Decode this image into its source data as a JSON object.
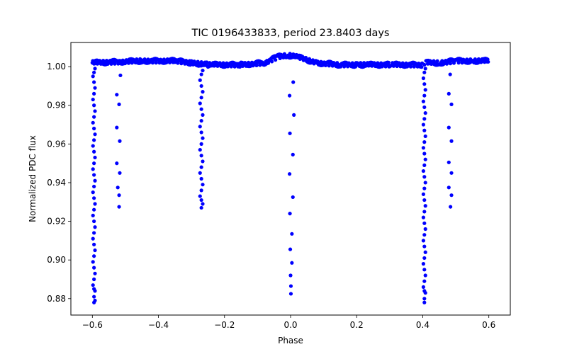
{
  "chart_data": {
    "type": "scatter",
    "title": "TIC 0196433833, period 23.8403 days",
    "xlabel": "Phase",
    "ylabel": "Normalized PDC flux",
    "xlim": [
      -0.665,
      0.665
    ],
    "ylim": [
      0.8715,
      1.0125
    ],
    "x_ticks": [
      -0.6,
      -0.4,
      -0.2,
      0.0,
      0.2,
      0.4,
      0.6
    ],
    "x_tick_labels": [
      "−0.6",
      "−0.4",
      "−0.2",
      "0.0",
      "0.2",
      "0.4",
      "0.6"
    ],
    "y_ticks": [
      0.88,
      0.9,
      0.92,
      0.94,
      0.96,
      0.98,
      1.0
    ],
    "y_tick_labels": [
      "0.88",
      "0.90",
      "0.92",
      "0.94",
      "0.96",
      "0.98",
      "1.00"
    ],
    "grid": false,
    "marker_color": "#0000ff",
    "series": [
      {
        "name": "eclipse_dips",
        "points": [
          [
            -0.595,
            1.0015
          ],
          [
            -0.595,
            0.997
          ],
          [
            -0.595,
            0.992
          ],
          [
            -0.595,
            0.986
          ],
          [
            -0.595,
            0.98
          ],
          [
            -0.595,
            0.974
          ],
          [
            -0.595,
            0.968
          ],
          [
            -0.595,
            0.962
          ],
          [
            -0.595,
            0.956
          ],
          [
            -0.595,
            0.95
          ],
          [
            -0.595,
            0.944
          ],
          [
            -0.595,
            0.938
          ],
          [
            -0.595,
            0.932
          ],
          [
            -0.595,
            0.926
          ],
          [
            -0.595,
            0.92
          ],
          [
            -0.595,
            0.914
          ],
          [
            -0.595,
            0.908
          ],
          [
            -0.595,
            0.902
          ],
          [
            -0.595,
            0.896
          ],
          [
            -0.595,
            0.89
          ],
          [
            -0.595,
            0.885
          ],
          [
            -0.595,
            0.881
          ],
          [
            -0.595,
            0.878
          ],
          [
            -0.592,
            0.999
          ],
          [
            -0.592,
            0.989
          ],
          [
            -0.592,
            0.977
          ],
          [
            -0.592,
            0.965
          ],
          [
            -0.592,
            0.953
          ],
          [
            -0.592,
            0.941
          ],
          [
            -0.592,
            0.929
          ],
          [
            -0.592,
            0.917
          ],
          [
            -0.592,
            0.905
          ],
          [
            -0.592,
            0.893
          ],
          [
            -0.592,
            0.884
          ],
          [
            -0.592,
            0.879
          ],
          [
            -0.598,
            0.995
          ],
          [
            -0.598,
            0.983
          ],
          [
            -0.598,
            0.971
          ],
          [
            -0.598,
            0.959
          ],
          [
            -0.598,
            0.947
          ],
          [
            -0.598,
            0.935
          ],
          [
            -0.598,
            0.923
          ],
          [
            -0.598,
            0.911
          ],
          [
            -0.598,
            0.899
          ],
          [
            -0.598,
            0.887
          ],
          [
            -0.526,
            0.9855
          ],
          [
            -0.519,
            0.9805
          ],
          [
            -0.526,
            0.9685
          ],
          [
            -0.517,
            0.9615
          ],
          [
            -0.526,
            0.95
          ],
          [
            -0.517,
            0.945
          ],
          [
            -0.523,
            0.9375
          ],
          [
            -0.519,
            0.9335
          ],
          [
            -0.519,
            0.9275
          ],
          [
            -0.515,
            0.9955
          ],
          [
            -0.27,
            1.0005
          ],
          [
            -0.27,
            0.996
          ],
          [
            -0.27,
            0.99
          ],
          [
            -0.27,
            0.984
          ],
          [
            -0.27,
            0.978
          ],
          [
            -0.27,
            0.972
          ],
          [
            -0.27,
            0.966
          ],
          [
            -0.27,
            0.96
          ],
          [
            -0.27,
            0.954
          ],
          [
            -0.27,
            0.948
          ],
          [
            -0.27,
            0.942
          ],
          [
            -0.27,
            0.936
          ],
          [
            -0.27,
            0.931
          ],
          [
            -0.27,
            0.927
          ],
          [
            -0.266,
            0.998
          ],
          [
            -0.266,
            0.987
          ],
          [
            -0.266,
            0.975
          ],
          [
            -0.266,
            0.963
          ],
          [
            -0.266,
            0.951
          ],
          [
            -0.266,
            0.939
          ],
          [
            -0.266,
            0.929
          ],
          [
            -0.274,
            0.993
          ],
          [
            -0.274,
            0.981
          ],
          [
            -0.274,
            0.969
          ],
          [
            -0.274,
            0.957
          ],
          [
            -0.274,
            0.945
          ],
          [
            -0.274,
            0.933
          ],
          [
            -0.003,
            0.985
          ],
          [
            0.008,
            0.992
          ],
          [
            0.01,
            0.975
          ],
          [
            -0.002,
            0.9655
          ],
          [
            0.007,
            0.9545
          ],
          [
            -0.003,
            0.9445
          ],
          [
            0.007,
            0.9325
          ],
          [
            -0.002,
            0.924
          ],
          [
            0.004,
            0.9135
          ],
          [
            -0.001,
            0.9055
          ],
          [
            0.004,
            0.8985
          ],
          [
            0.0,
            0.892
          ],
          [
            0.001,
            0.8865
          ],
          [
            0.001,
            0.8825
          ],
          [
            0.405,
            1.001
          ],
          [
            0.405,
            0.997
          ],
          [
            0.405,
            0.991
          ],
          [
            0.405,
            0.985
          ],
          [
            0.405,
            0.979
          ],
          [
            0.405,
            0.973
          ],
          [
            0.405,
            0.967
          ],
          [
            0.405,
            0.961
          ],
          [
            0.405,
            0.955
          ],
          [
            0.405,
            0.949
          ],
          [
            0.405,
            0.943
          ],
          [
            0.405,
            0.937
          ],
          [
            0.405,
            0.931
          ],
          [
            0.405,
            0.925
          ],
          [
            0.405,
            0.919
          ],
          [
            0.405,
            0.913
          ],
          [
            0.405,
            0.907
          ],
          [
            0.405,
            0.901
          ],
          [
            0.405,
            0.895
          ],
          [
            0.405,
            0.889
          ],
          [
            0.405,
            0.884
          ],
          [
            0.405,
            0.88
          ],
          [
            0.405,
            0.878
          ],
          [
            0.408,
            0.999
          ],
          [
            0.408,
            0.988
          ],
          [
            0.408,
            0.976
          ],
          [
            0.408,
            0.964
          ],
          [
            0.408,
            0.952
          ],
          [
            0.408,
            0.94
          ],
          [
            0.408,
            0.928
          ],
          [
            0.408,
            0.916
          ],
          [
            0.408,
            0.904
          ],
          [
            0.408,
            0.892
          ],
          [
            0.408,
            0.883
          ],
          [
            0.402,
            0.994
          ],
          [
            0.402,
            0.982
          ],
          [
            0.402,
            0.97
          ],
          [
            0.402,
            0.958
          ],
          [
            0.402,
            0.946
          ],
          [
            0.402,
            0.934
          ],
          [
            0.402,
            0.922
          ],
          [
            0.402,
            0.91
          ],
          [
            0.402,
            0.898
          ],
          [
            0.402,
            0.886
          ],
          [
            0.479,
            0.986
          ],
          [
            0.487,
            0.9805
          ],
          [
            0.479,
            0.9685
          ],
          [
            0.487,
            0.9615
          ],
          [
            0.479,
            0.9505
          ],
          [
            0.487,
            0.945
          ],
          [
            0.479,
            0.9375
          ],
          [
            0.487,
            0.9335
          ],
          [
            0.484,
            0.9275
          ],
          [
            0.483,
            0.996
          ]
        ]
      }
    ],
    "baseline": {
      "description": "out-of-eclipse flux near 1.0",
      "x_range": [
        -0.6,
        0.6
      ],
      "segments": [
        {
          "x": [
            -0.6,
            -0.45,
            -0.35,
            -0.3,
            -0.25,
            -0.15,
            -0.08,
            -0.04,
            -0.01,
            0.02,
            0.08,
            0.15,
            0.2,
            0.3,
            0.4
          ],
          "y": [
            1.002,
            1.003,
            1.003,
            1.002,
            1.001,
            1.001,
            1.002,
            1.005,
            1.006,
            1.005,
            1.002,
            1.001,
            1.001,
            1.001,
            1.001
          ]
        },
        {
          "x": [
            0.41,
            0.45,
            0.5,
            0.55,
            0.6
          ],
          "y": [
            1.002,
            1.002,
            1.003,
            1.003,
            1.003
          ]
        }
      ]
    }
  }
}
